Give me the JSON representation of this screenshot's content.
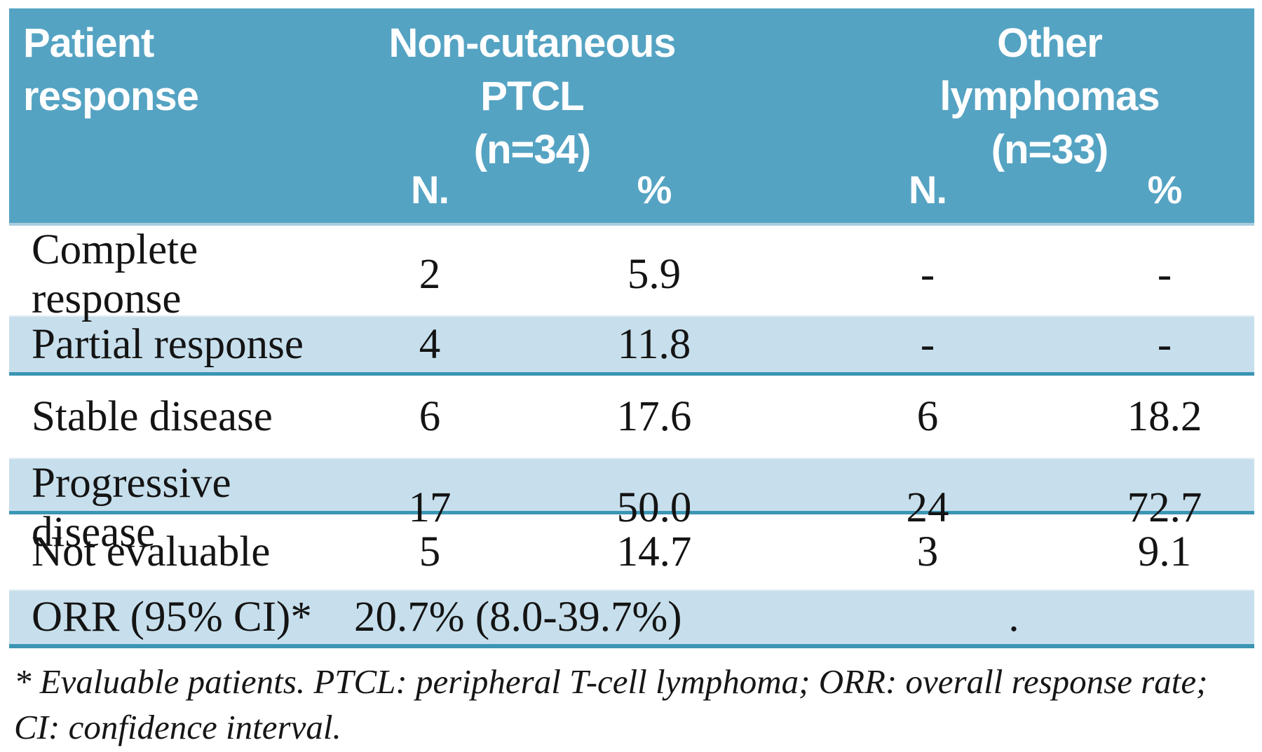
{
  "colors": {
    "header_bg": "#55a3c3",
    "row_highlight": "#c7dfec",
    "divider": "#3b95b4",
    "header_edge": "#a9cddd",
    "text": "#141414",
    "page_bg": "#ffffff"
  },
  "table": {
    "header": {
      "row_header": {
        "line1": "Patient",
        "line2": "response"
      },
      "group1": {
        "line1": "Non-cutaneous",
        "line2": "PTCL",
        "line3": "(n=34)"
      },
      "group2": {
        "line1": "Other",
        "line2": "lymphomas",
        "line3": "(n=33)"
      },
      "col_n_label": "N.",
      "col_pct_label": "%"
    },
    "rows": [
      {
        "label": "Complete response",
        "ptcl_n": "2",
        "ptcl_pct": "5.9",
        "other_n": "-",
        "other_pct": "-"
      },
      {
        "label": "Partial response",
        "ptcl_n": "4",
        "ptcl_pct": "11.8",
        "other_n": "-",
        "other_pct": "-"
      },
      {
        "label": "Stable disease",
        "ptcl_n": "6",
        "ptcl_pct": "17.6",
        "other_n": "6",
        "other_pct": "18.2"
      },
      {
        "label": "Progressive disease",
        "ptcl_n": "17",
        "ptcl_pct": "50.0",
        "other_n": "24",
        "other_pct": "72.7"
      },
      {
        "label": "Not evaluable",
        "ptcl_n": "5",
        "ptcl_pct": "14.7",
        "other_n": "3",
        "other_pct": "9.1"
      }
    ],
    "orr_row": {
      "label": "ORR (95% CI)*",
      "ptcl_value": "20.7% (8.0-39.7%)",
      "other_value": "."
    }
  },
  "footnote": "* Evaluable patients. PTCL: peripheral T-cell lymphoma; ORR: overall response rate; CI: confidence interval."
}
